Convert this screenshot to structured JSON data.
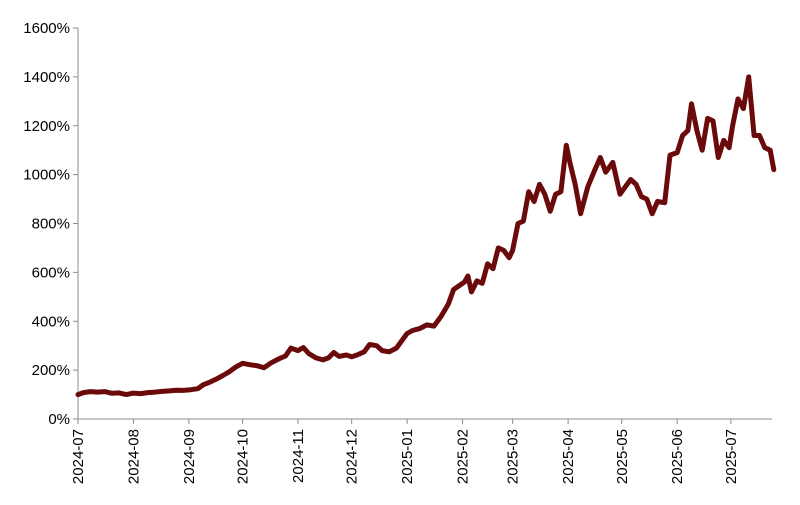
{
  "chart_data": {
    "type": "line",
    "title": "",
    "xlabel": "",
    "ylabel": "",
    "ylim": [
      0,
      1600
    ],
    "y_ticks": [
      0,
      200,
      400,
      600,
      800,
      1000,
      1200,
      1400,
      1600
    ],
    "y_tick_labels": [
      "0%",
      "200%",
      "400%",
      "600%",
      "800%",
      "1000%",
      "1200%",
      "1400%",
      "1600%"
    ],
    "x_ticks": [
      "2024-07-01",
      "2024-08-01",
      "2024-09-01",
      "2024-10-01",
      "2024-11-01",
      "2024-12-01",
      "2025-01-01",
      "2025-02-01",
      "2025-03-01",
      "2025-04-01",
      "2025-05-01",
      "2025-06-01",
      "2025-07-01"
    ],
    "x_tick_labels": [
      "2024-07",
      "2024-08",
      "2024-09",
      "2024-10",
      "2024-11",
      "2024-12",
      "2025-01",
      "2025-02",
      "2025-03",
      "2025-04",
      "2025-05",
      "2025-06",
      "2025-07"
    ],
    "xlim": [
      "2024-07-01",
      "2025-07-24"
    ],
    "grid": false,
    "legend": "none",
    "series": [
      {
        "color": "#6b0a0a",
        "points": [
          [
            "2024-07-01",
            100
          ],
          [
            "2024-07-04",
            108
          ],
          [
            "2024-07-08",
            112
          ],
          [
            "2024-07-12",
            110
          ],
          [
            "2024-07-16",
            112
          ],
          [
            "2024-07-20",
            105
          ],
          [
            "2024-07-24",
            107
          ],
          [
            "2024-07-28",
            100
          ],
          [
            "2024-08-01",
            106
          ],
          [
            "2024-08-05",
            104
          ],
          [
            "2024-08-09",
            108
          ],
          [
            "2024-08-13",
            110
          ],
          [
            "2024-08-17",
            113
          ],
          [
            "2024-08-21",
            115
          ],
          [
            "2024-08-25",
            118
          ],
          [
            "2024-08-29",
            117
          ],
          [
            "2024-09-02",
            120
          ],
          [
            "2024-09-06",
            124
          ],
          [
            "2024-09-09",
            140
          ],
          [
            "2024-09-13",
            152
          ],
          [
            "2024-09-16",
            162
          ],
          [
            "2024-09-20",
            178
          ],
          [
            "2024-09-24",
            195
          ],
          [
            "2024-09-27",
            212
          ],
          [
            "2024-10-01",
            228
          ],
          [
            "2024-10-05",
            222
          ],
          [
            "2024-10-09",
            218
          ],
          [
            "2024-10-13",
            210
          ],
          [
            "2024-10-17",
            230
          ],
          [
            "2024-10-21",
            245
          ],
          [
            "2024-10-25",
            258
          ],
          [
            "2024-10-28",
            290
          ],
          [
            "2024-11-01",
            280
          ],
          [
            "2024-11-04",
            292
          ],
          [
            "2024-11-07",
            268
          ],
          [
            "2024-11-11",
            250
          ],
          [
            "2024-11-15",
            242
          ],
          [
            "2024-11-18",
            250
          ],
          [
            "2024-11-21",
            272
          ],
          [
            "2024-11-24",
            256
          ],
          [
            "2024-11-28",
            262
          ],
          [
            "2024-12-01",
            255
          ],
          [
            "2024-12-04",
            262
          ],
          [
            "2024-12-08",
            275
          ],
          [
            "2024-12-11",
            305
          ],
          [
            "2024-12-15",
            300
          ],
          [
            "2024-12-18",
            280
          ],
          [
            "2024-12-22",
            275
          ],
          [
            "2024-12-26",
            290
          ],
          [
            "2024-12-30",
            330
          ],
          [
            "2025-01-01",
            350
          ],
          [
            "2025-01-04",
            362
          ],
          [
            "2025-01-08",
            370
          ],
          [
            "2025-01-12",
            385
          ],
          [
            "2025-01-16",
            380
          ],
          [
            "2025-01-20",
            420
          ],
          [
            "2025-01-24",
            470
          ],
          [
            "2025-01-27",
            530
          ],
          [
            "2025-01-30",
            545
          ],
          [
            "2025-02-02",
            560
          ],
          [
            "2025-02-04",
            585
          ],
          [
            "2025-02-06",
            520
          ],
          [
            "2025-02-09",
            565
          ],
          [
            "2025-02-12",
            555
          ],
          [
            "2025-02-15",
            635
          ],
          [
            "2025-02-18",
            615
          ],
          [
            "2025-02-21",
            700
          ],
          [
            "2025-02-24",
            690
          ],
          [
            "2025-02-27",
            660
          ],
          [
            "2025-03-01",
            690
          ],
          [
            "2025-03-04",
            800
          ],
          [
            "2025-03-07",
            810
          ],
          [
            "2025-03-10",
            930
          ],
          [
            "2025-03-13",
            890
          ],
          [
            "2025-03-16",
            960
          ],
          [
            "2025-03-19",
            920
          ],
          [
            "2025-03-22",
            850
          ],
          [
            "2025-03-25",
            920
          ],
          [
            "2025-03-28",
            930
          ],
          [
            "2025-03-31",
            1120
          ],
          [
            "2025-04-02",
            1050
          ],
          [
            "2025-04-05",
            960
          ],
          [
            "2025-04-08",
            840
          ],
          [
            "2025-04-12",
            950
          ],
          [
            "2025-04-16",
            1020
          ],
          [
            "2025-04-19",
            1070
          ],
          [
            "2025-04-22",
            1010
          ],
          [
            "2025-04-26",
            1050
          ],
          [
            "2025-04-30",
            920
          ],
          [
            "2025-05-03",
            950
          ],
          [
            "2025-05-06",
            980
          ],
          [
            "2025-05-09",
            960
          ],
          [
            "2025-05-12",
            910
          ],
          [
            "2025-05-15",
            900
          ],
          [
            "2025-05-18",
            840
          ],
          [
            "2025-05-21",
            890
          ],
          [
            "2025-05-25",
            885
          ],
          [
            "2025-05-28",
            1080
          ],
          [
            "2025-06-01",
            1090
          ],
          [
            "2025-06-04",
            1160
          ],
          [
            "2025-06-07",
            1180
          ],
          [
            "2025-06-09",
            1290
          ],
          [
            "2025-06-12",
            1180
          ],
          [
            "2025-06-15",
            1100
          ],
          [
            "2025-06-18",
            1230
          ],
          [
            "2025-06-21",
            1220
          ],
          [
            "2025-06-24",
            1070
          ],
          [
            "2025-06-27",
            1140
          ],
          [
            "2025-06-30",
            1110
          ],
          [
            "2025-07-02",
            1200
          ],
          [
            "2025-07-05",
            1310
          ],
          [
            "2025-07-08",
            1270
          ],
          [
            "2025-07-11",
            1400
          ],
          [
            "2025-07-14",
            1160
          ],
          [
            "2025-07-17",
            1160
          ],
          [
            "2025-07-20",
            1110
          ],
          [
            "2025-07-23",
            1100
          ],
          [
            "2025-07-25",
            1020
          ]
        ]
      }
    ]
  }
}
